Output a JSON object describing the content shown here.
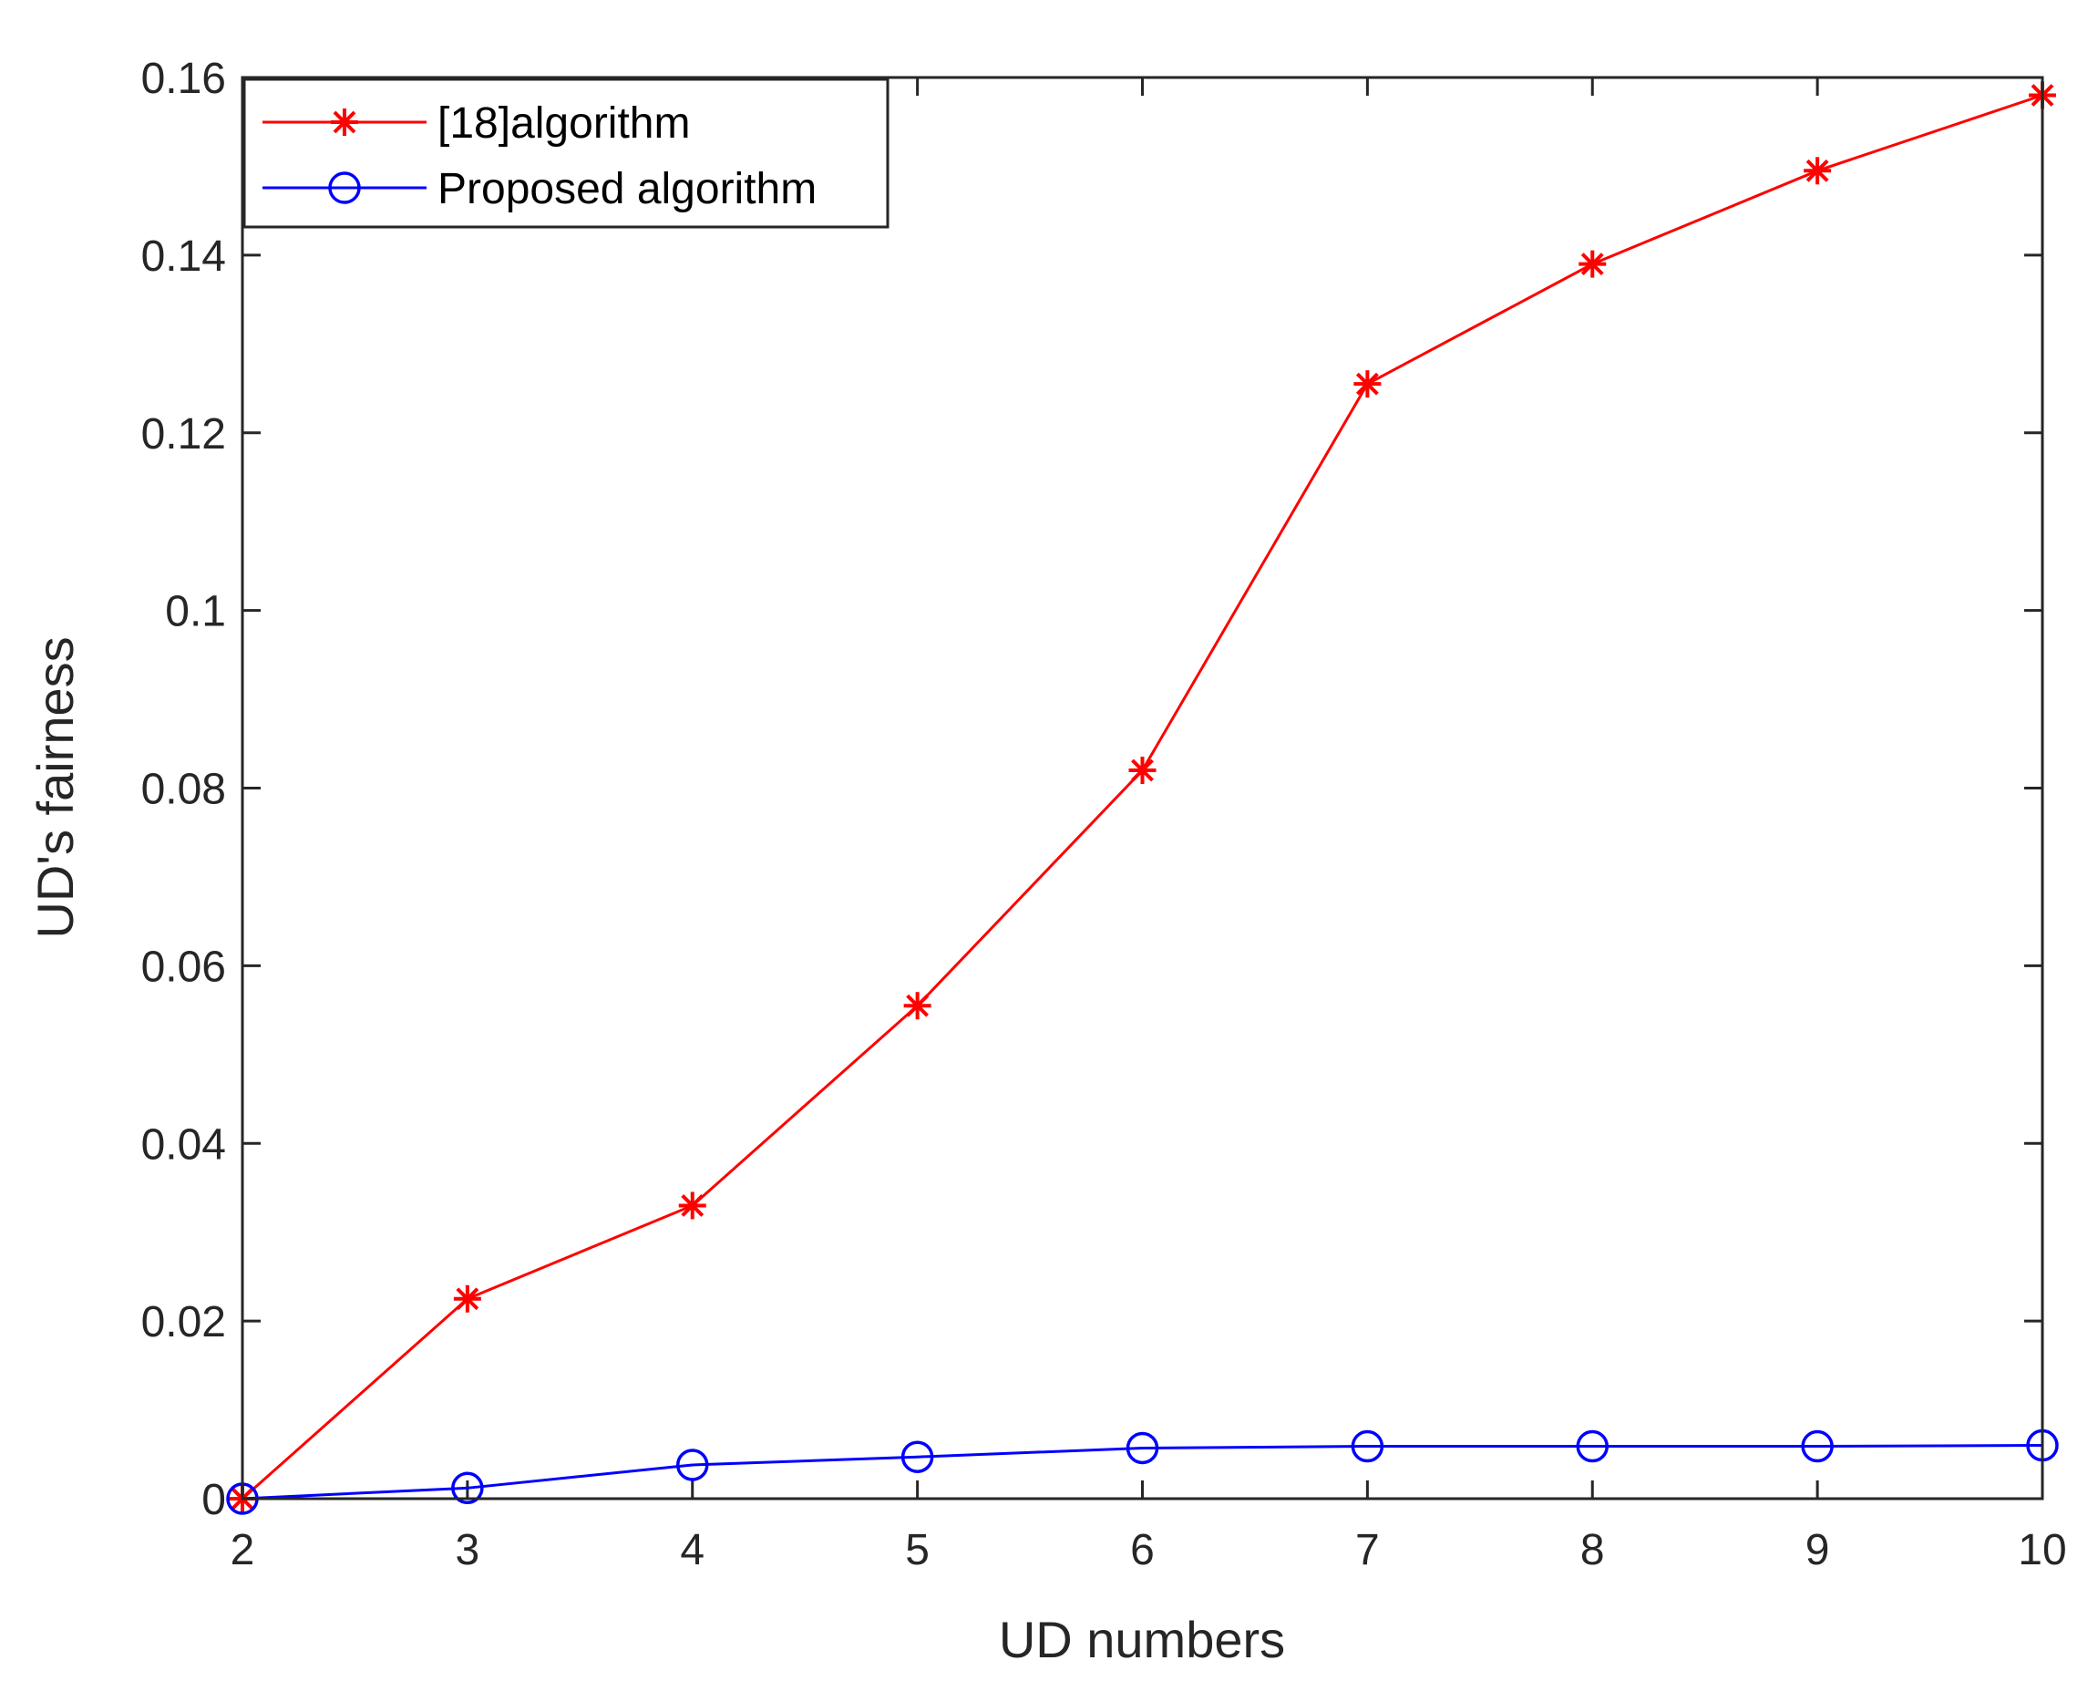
{
  "chart_data": {
    "type": "line",
    "title": "",
    "xlabel": "UD numbers",
    "ylabel": "UD's fairness",
    "x": [
      2,
      3,
      4,
      5,
      6,
      7,
      8,
      9,
      10
    ],
    "xlim": [
      2,
      10
    ],
    "ylim": [
      0,
      0.16
    ],
    "xticks": [
      "2",
      "3",
      "4",
      "5",
      "6",
      "7",
      "8",
      "9",
      "10"
    ],
    "yticks": [
      "0",
      "0.02",
      "0.04",
      "0.06",
      "0.08",
      "0.1",
      "0.12",
      "0.14",
      "0.16"
    ],
    "grid": false,
    "legend_position": "top-left",
    "series": [
      {
        "name": "[18]algorithm",
        "color": "#ff0000",
        "marker": "asterisk",
        "values": [
          0.0,
          0.0225,
          0.033,
          0.0555,
          0.082,
          0.1255,
          0.139,
          0.1495,
          0.158
        ]
      },
      {
        "name": "Proposed algorithm",
        "color": "#0000ff",
        "marker": "circle",
        "values": [
          0.0,
          0.0012,
          0.0038,
          0.0047,
          0.0057,
          0.0059,
          0.0059,
          0.0059,
          0.006
        ]
      }
    ]
  }
}
